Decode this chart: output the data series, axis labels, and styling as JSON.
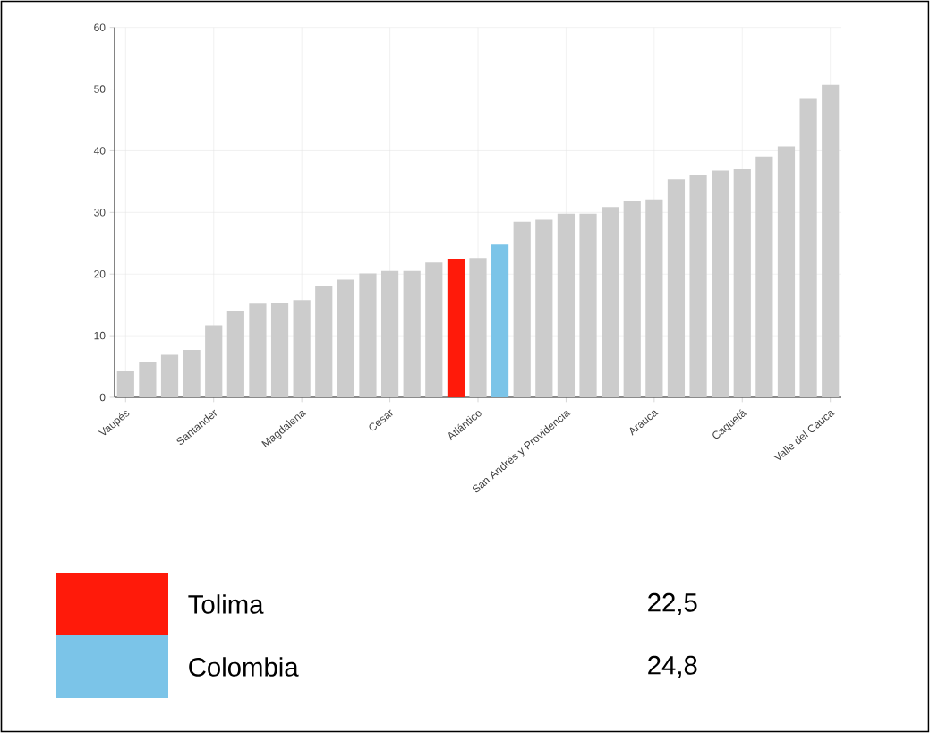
{
  "chart_data": {
    "type": "bar",
    "categories": [
      "Vaupés",
      null,
      null,
      null,
      "Santander",
      null,
      null,
      null,
      "Magdalena",
      null,
      null,
      null,
      "Cesar",
      null,
      null,
      null,
      "Atlántico",
      null,
      null,
      null,
      "San Andrés y Providencia",
      null,
      null,
      null,
      "Arauca",
      null,
      null,
      null,
      "Caquetá",
      null,
      null,
      null,
      "Valle del Cauca"
    ],
    "series": [
      {
        "color": "#cccccc",
        "values": [
          4.3,
          5.8,
          6.9,
          7.7,
          11.7,
          14.0,
          15.2,
          15.4,
          15.8,
          18.0,
          19.1,
          20.1,
          20.5,
          20.5,
          21.9,
          null,
          22.6,
          null,
          28.5,
          28.8,
          29.8,
          29.8,
          30.9,
          31.8,
          32.1,
          35.4,
          36.0,
          36.8,
          37.0,
          39.1,
          40.7,
          48.4,
          50.7
        ]
      },
      {
        "name": "Tolima",
        "color": "#ff1a0a",
        "values": [
          null,
          null,
          null,
          null,
          null,
          null,
          null,
          null,
          null,
          null,
          null,
          null,
          null,
          null,
          null,
          22.5,
          null,
          null,
          null,
          null,
          null,
          null,
          null,
          null,
          null,
          null,
          null,
          null,
          null,
          null,
          null,
          null,
          null
        ]
      },
      {
        "name": "Colombia",
        "color": "#7bc4e8",
        "values": [
          null,
          null,
          null,
          null,
          null,
          null,
          null,
          null,
          null,
          null,
          null,
          null,
          null,
          null,
          null,
          null,
          null,
          24.8,
          null,
          null,
          null,
          null,
          null,
          null,
          null,
          null,
          null,
          null,
          null,
          null,
          null,
          null,
          null
        ]
      }
    ],
    "annotations": [
      "22,5",
      "24,8"
    ],
    "ylim": [
      0,
      60
    ],
    "yticks": [
      0,
      10,
      20,
      30,
      40,
      50,
      60
    ],
    "grid": true,
    "legend": "bottom"
  }
}
